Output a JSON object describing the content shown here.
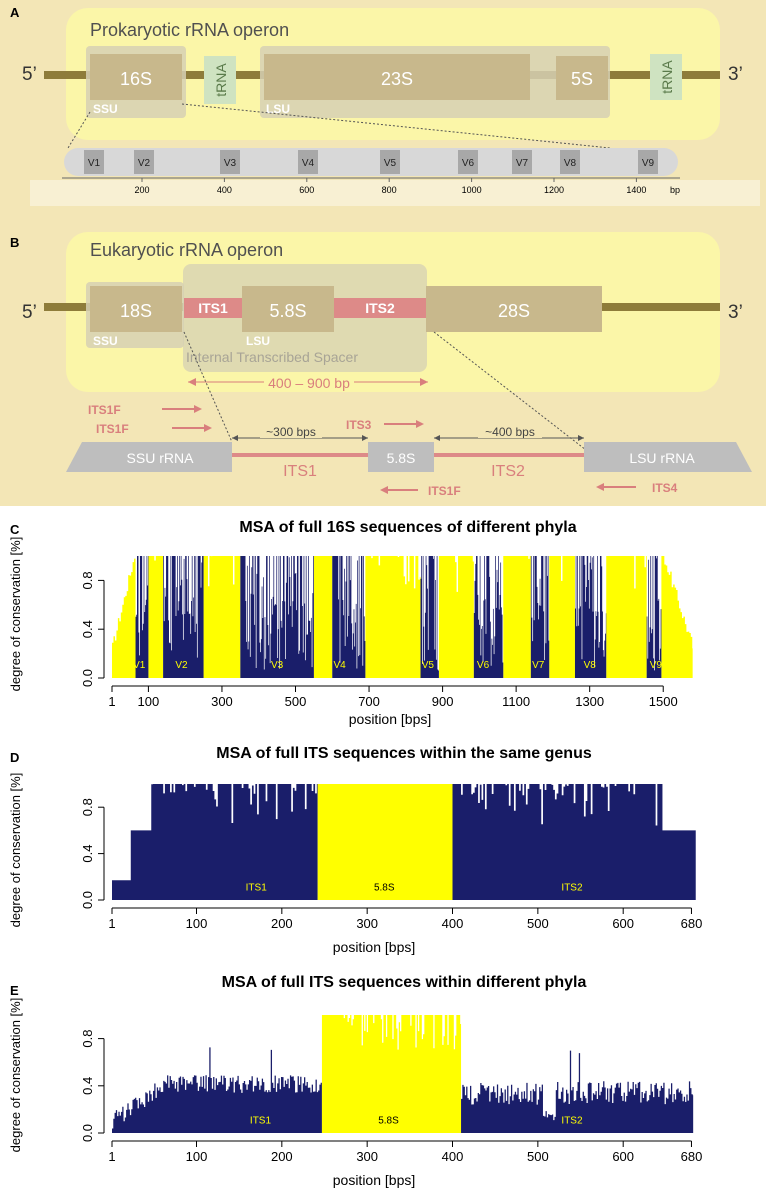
{
  "colors": {
    "paper_bg": "#f3e6b6",
    "operon_box": "#fbf6a8",
    "backbone": "#8e7c3a",
    "gene": "#c8b88c",
    "subunit": "#d6d0b4",
    "trna": "#cfe3c1",
    "its": "#dd8a88",
    "its_text": "#d97f7d",
    "grey_block": "#bebebe",
    "light_grey": "#d8d8d8",
    "navy": "#1a1e6a",
    "yellow": "#ffff00",
    "white": "#ffffff"
  },
  "panel_a": {
    "letter": "A",
    "title": "Prokaryotic rRNA operon",
    "five_prime": "5’",
    "three_prime": "3’",
    "genes": [
      "16S",
      "23S",
      "5S"
    ],
    "trna": [
      "tRNA",
      "tRNA"
    ],
    "ssu": "SSU",
    "lsu": "LSU",
    "v_regions": [
      "V1",
      "V2",
      "V3",
      "V4",
      "V5",
      "V6",
      "V7",
      "V8",
      "V9"
    ],
    "scale_ticks": [
      "200",
      "400",
      "600",
      "800",
      "1000",
      "1200",
      "1400"
    ],
    "scale_unit": "bp"
  },
  "panel_b": {
    "letter": "B",
    "title": "Eukaryotic rRNA operon",
    "five_prime": "5’",
    "three_prime": "3’",
    "genes": [
      "18S",
      "5.8S",
      "28S"
    ],
    "its": [
      "ITS1",
      "ITS2"
    ],
    "ssu": "SSU",
    "lsu": "LSU",
    "spacer_label": "Internal Transcribed Spacer",
    "span_label": "400 – 900 bp",
    "primers_fwd": [
      "ITS1F",
      "ITS1F",
      "ITS3"
    ],
    "primers_rev": [
      "ITS1F",
      "ITS4"
    ],
    "dist1": "~300 bps",
    "dist2": "~400 bps",
    "blocks": [
      "SSU rRNA",
      "5.8S",
      "LSU rRNA"
    ],
    "its_labels": [
      "ITS1",
      "ITS2"
    ]
  },
  "chart_data": [
    {
      "type": "area",
      "letter": "C",
      "title": "MSA of full 16S sequences of different phyla",
      "xlabel": "position [bps]",
      "ylabel": "degree of conservation [%]",
      "xlim": [
        1,
        1600
      ],
      "ylim": [
        0,
        1
      ],
      "x_ticks": [
        1,
        100,
        300,
        500,
        700,
        900,
        1100,
        1300,
        1500
      ],
      "y_ticks": [
        "0.0",
        "0.4",
        "0.8"
      ],
      "region_labels": [
        {
          "label": "V1",
          "x": 75
        },
        {
          "label": "V2",
          "x": 190
        },
        {
          "label": "V3",
          "x": 450
        },
        {
          "label": "V4",
          "x": 620
        },
        {
          "label": "V5",
          "x": 860
        },
        {
          "label": "V6",
          "x": 1010
        },
        {
          "label": "V7",
          "x": 1160
        },
        {
          "label": "V8",
          "x": 1300
        },
        {
          "label": "V9",
          "x": 1480
        }
      ],
      "variable_regions": [
        [
          65,
          100
        ],
        [
          140,
          250
        ],
        [
          350,
          550
        ],
        [
          600,
          690
        ],
        [
          840,
          890
        ],
        [
          985,
          1065
        ],
        [
          1140,
          1190
        ],
        [
          1260,
          1345
        ],
        [
          1455,
          1495
        ]
      ],
      "conserved_regions": [
        [
          1,
          65
        ],
        [
          100,
          140
        ],
        [
          250,
          350
        ],
        [
          550,
          600
        ],
        [
          690,
          840
        ],
        [
          890,
          985
        ],
        [
          1065,
          1140
        ],
        [
          1190,
          1260
        ],
        [
          1345,
          1455
        ],
        [
          1495,
          1580
        ]
      ]
    },
    {
      "type": "area",
      "letter": "D",
      "title": "MSA of full ITS sequences within the same genus",
      "xlabel": "position [bps]",
      "ylabel": "degree of conservation [%]",
      "xlim": [
        1,
        690
      ],
      "ylim": [
        0,
        1
      ],
      "x_ticks": [
        1,
        100,
        200,
        300,
        400,
        500,
        600,
        680
      ],
      "y_ticks": [
        "0.0",
        "0.4",
        "0.8"
      ],
      "region_labels": [
        {
          "label": "ITS1",
          "x": 170
        },
        {
          "label": "5.8S",
          "x": 320
        },
        {
          "label": "ITS2",
          "x": 540
        }
      ],
      "its1": [
        1,
        242
      ],
      "s58": [
        242,
        400
      ],
      "its2": [
        400,
        685
      ]
    },
    {
      "type": "area",
      "letter": "E",
      "title": "MSA of full ITS sequences within different phyla",
      "xlabel": "position [bps]",
      "ylabel": "degree of conservation [%]",
      "xlim": [
        1,
        690
      ],
      "ylim": [
        0,
        1
      ],
      "x_ticks": [
        1,
        100,
        200,
        300,
        400,
        500,
        600,
        680
      ],
      "y_ticks": [
        "0.0",
        "0.4",
        "0.8"
      ],
      "region_labels": [
        {
          "label": "ITS1",
          "x": 175
        },
        {
          "label": "5.8S",
          "x": 325
        },
        {
          "label": "ITS2",
          "x": 540
        }
      ],
      "its1": [
        1,
        247
      ],
      "s58": [
        247,
        410
      ],
      "its2": [
        410,
        682
      ]
    }
  ]
}
